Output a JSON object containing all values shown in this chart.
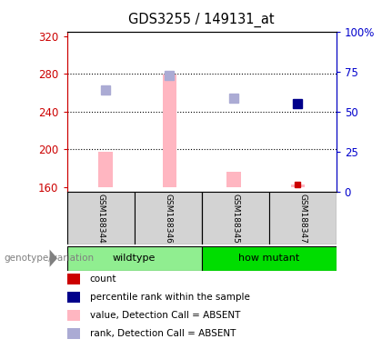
{
  "title": "GDS3255 / 149131_at",
  "samples": [
    "GSM188344",
    "GSM188346",
    "GSM188345",
    "GSM188347"
  ],
  "ylim_left": [
    155,
    325
  ],
  "ylim_right": [
    0,
    100
  ],
  "yticks_left": [
    160,
    200,
    240,
    280,
    320
  ],
  "yticks_right": [
    0,
    25,
    50,
    75,
    100
  ],
  "ytick_labels_right": [
    "0",
    "25",
    "50",
    "75",
    "100%"
  ],
  "pink_bars": {
    "GSM188344": 198,
    "GSM188346": 279,
    "GSM188345": 176,
    "GSM188347": 163
  },
  "lavender_squares": {
    "GSM188344": 263,
    "GSM188346": 278,
    "GSM188345": 254
  },
  "blue_squares": {
    "GSM188347": 249
  },
  "red_squares": {
    "GSM188347": 163
  },
  "bar_bottom": 160,
  "pink_color": "#FFB6C1",
  "lavender_color": "#ABABD4",
  "blue_color": "#00008B",
  "red_color": "#CC0000",
  "axis_color_left": "#CC0000",
  "axis_color_right": "#0000CC",
  "background_plot": "#FFFFFF",
  "background_sample": "#D3D3D3",
  "background_group_wildtype": "#90EE90",
  "background_group_mutant": "#00DD00",
  "genotype_label": "genotype/variation",
  "wildtype_samples": [
    "GSM188344",
    "GSM188346"
  ],
  "mutant_samples": [
    "GSM188345",
    "GSM188347"
  ],
  "wildtype_label": "wildtype",
  "mutant_label": "how mutant"
}
